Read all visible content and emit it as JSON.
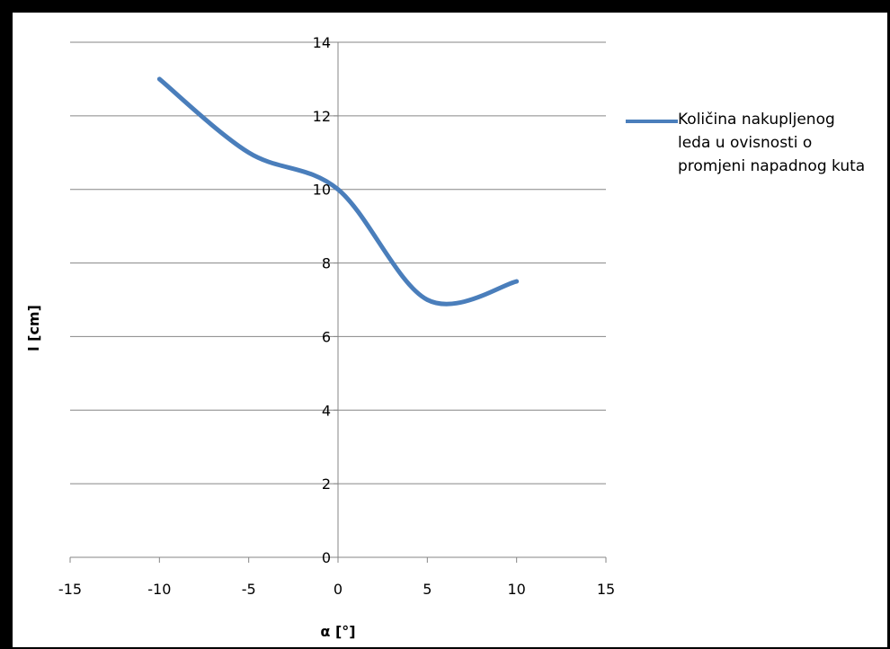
{
  "chart_data": {
    "type": "line",
    "title": "",
    "xlabel": "α [°]",
    "ylabel": "l [cm]",
    "xlim": [
      -15,
      15
    ],
    "ylim": [
      0,
      14
    ],
    "xticks": [
      -15,
      -10,
      -5,
      0,
      5,
      10,
      15
    ],
    "yticks": [
      0,
      2,
      4,
      6,
      8,
      10,
      12,
      14
    ],
    "grid": "horizontal",
    "legend_position": "right",
    "series": [
      {
        "name": "Količina nakupljenog leda u ovisnosti o promjeni napadnog kuta",
        "color": "#4a7ebb",
        "x": [
          -10,
          -5,
          0,
          5,
          10
        ],
        "y": [
          13,
          11,
          10,
          7,
          7.5
        ]
      }
    ]
  }
}
